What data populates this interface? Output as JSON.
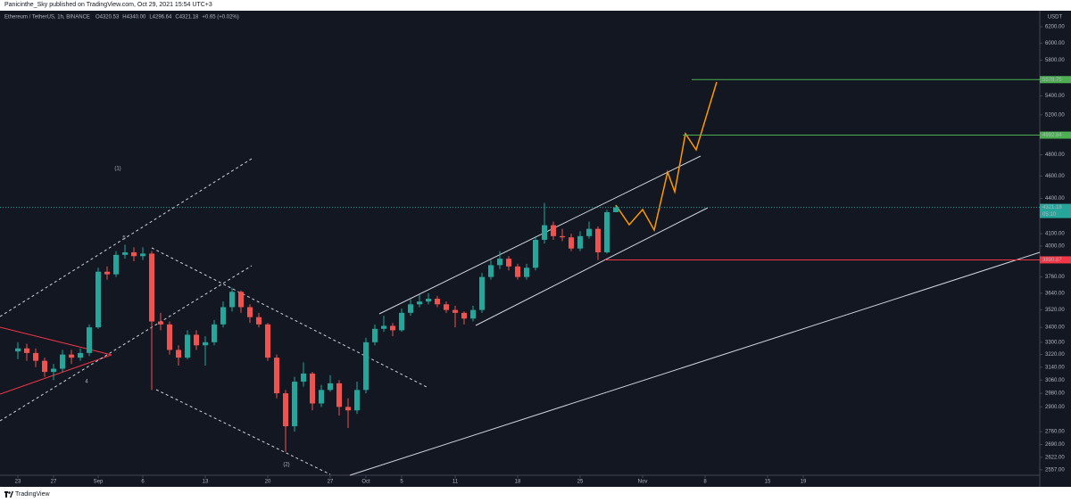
{
  "header": {
    "publisher": "Panicinthe_Sky published on TradingView.com, Oct 29, 2021 15:54 UTC+3",
    "footer": "TradingView"
  },
  "chart_data": {
    "type": "candlestick",
    "symbol": "Ethereum / TetherUS, 1h, BINANCE",
    "ohlc_legend": [
      "O4320.53",
      "H4340.00",
      "L4296.64",
      "C4321.18",
      "+0.65 (+0.02%)"
    ],
    "currency": "USDT",
    "log_scale": true,
    "up_color": "#26a69a",
    "down_color": "#ef5350",
    "open": [
      3240,
      3260,
      3230,
      3180,
      3110,
      3130,
      3220,
      3200,
      3230,
      3400,
      3800,
      3780,
      3930,
      3950,
      3920,
      3940,
      3440,
      3420,
      3250,
      3200,
      3350,
      3280,
      3300,
      3420,
      3540,
      3650,
      3540,
      3470,
      3420,
      3200,
      2980,
      2790,
      3050,
      3100,
      2920,
      3000,
      3040,
      2900,
      2880,
      3000,
      3300,
      3390,
      3410,
      3380,
      3500,
      3560,
      3580,
      3600,
      3560,
      3520,
      3500,
      3460,
      3520,
      3760,
      3850,
      3900,
      3840,
      3760,
      3830,
      4050,
      4170,
      4080,
      4070,
      3980,
      4080,
      4140,
      3950,
      4280
    ],
    "high": [
      3300,
      3290,
      3260,
      3200,
      3160,
      3250,
      3250,
      3260,
      3420,
      3830,
      3840,
      3960,
      4010,
      3990,
      3990,
      3960,
      3500,
      3440,
      3280,
      3380,
      3380,
      3340,
      3450,
      3580,
      3680,
      3660,
      3560,
      3500,
      3430,
      3220,
      3000,
      3080,
      3170,
      3110,
      3030,
      3090,
      3060,
      2950,
      3050,
      3330,
      3420,
      3480,
      3430,
      3530,
      3600,
      3630,
      3640,
      3620,
      3580,
      3550,
      3510,
      3550,
      3790,
      3890,
      3960,
      3920,
      3860,
      3860,
      4080,
      4360,
      4200,
      4140,
      4100,
      4120,
      4200,
      4160,
      4300,
      4340
    ],
    "low": [
      3190,
      3180,
      3140,
      3080,
      3060,
      3110,
      3160,
      3180,
      3210,
      3390,
      3740,
      3760,
      3900,
      3880,
      3890,
      3000,
      3380,
      3220,
      3150,
      3190,
      3250,
      3150,
      3280,
      3400,
      3510,
      3500,
      3430,
      3400,
      3180,
      2950,
      2650,
      2760,
      3020,
      2880,
      2900,
      2990,
      2850,
      2780,
      2860,
      2980,
      3280,
      3370,
      3340,
      3370,
      3480,
      3540,
      3560,
      3540,
      3500,
      3400,
      3420,
      3440,
      3500,
      3740,
      3820,
      3810,
      3740,
      3740,
      3810,
      4020,
      4050,
      4040,
      3960,
      3960,
      4060,
      3890,
      3940,
      4280
    ],
    "close": [
      3260,
      3230,
      3180,
      3110,
      3130,
      3220,
      3200,
      3230,
      3400,
      3800,
      3780,
      3930,
      3950,
      3920,
      3940,
      3440,
      3420,
      3250,
      3200,
      3350,
      3280,
      3300,
      3420,
      3540,
      3650,
      3540,
      3470,
      3420,
      3200,
      2980,
      2790,
      3050,
      3100,
      2920,
      3000,
      3040,
      2900,
      2880,
      3000,
      3300,
      3390,
      3410,
      3380,
      3500,
      3560,
      3580,
      3600,
      3560,
      3520,
      3500,
      3460,
      3520,
      3760,
      3850,
      3900,
      3840,
      3760,
      3830,
      4050,
      4170,
      4080,
      4070,
      3980,
      4080,
      4140,
      3950,
      4280,
      4321.18
    ],
    "xlim": [
      -2,
      114.5
    ],
    "xticks": [
      {
        "value": 0,
        "label": "23"
      },
      {
        "value": 4,
        "label": "27"
      },
      {
        "value": 9,
        "label": "Sep"
      },
      {
        "value": 14,
        "label": "6"
      },
      {
        "value": 21,
        "label": "13"
      },
      {
        "value": 28,
        "label": "20"
      },
      {
        "value": 35,
        "label": "27"
      },
      {
        "value": 39,
        "label": "Oct"
      },
      {
        "value": 43,
        "label": "5"
      },
      {
        "value": 49,
        "label": "11"
      },
      {
        "value": 56,
        "label": "18"
      },
      {
        "value": 63,
        "label": "25"
      },
      {
        "value": 70,
        "label": "Nov"
      },
      {
        "value": 77,
        "label": "8"
      },
      {
        "value": 84,
        "label": "15"
      },
      {
        "value": 88,
        "label": "19"
      }
    ],
    "ylim": [
      2485,
      6312
    ],
    "yticks": [
      {
        "value": 6200,
        "label": "6200.00"
      },
      {
        "value": 6000,
        "label": "6000.00"
      },
      {
        "value": 5800,
        "label": "5800.00"
      },
      {
        "value": 5400,
        "label": "5400.00"
      },
      {
        "value": 5200,
        "label": "5200.00"
      },
      {
        "value": 4800,
        "label": "4800.00"
      },
      {
        "value": 4600,
        "label": "4600.00"
      },
      {
        "value": 4400,
        "label": "4400.00"
      },
      {
        "value": 4100,
        "label": "4100.00"
      },
      {
        "value": 4000,
        "label": "4000.00"
      },
      {
        "value": 3760,
        "label": "3760.00"
      },
      {
        "value": 3640,
        "label": "3640.00"
      },
      {
        "value": 3520,
        "label": "3520.00"
      },
      {
        "value": 3400,
        "label": "3400.00"
      },
      {
        "value": 3300,
        "label": "3300.00"
      },
      {
        "value": 3220,
        "label": "3220.00"
      },
      {
        "value": 3140,
        "label": "3140.00"
      },
      {
        "value": 3060,
        "label": "3060.00"
      },
      {
        "value": 2980,
        "label": "2980.00"
      },
      {
        "value": 2900,
        "label": "2900.00"
      },
      {
        "value": 2760,
        "label": "2760.00"
      },
      {
        "value": 2690,
        "label": "2690.00"
      },
      {
        "value": 2622,
        "label": "2622.00"
      },
      {
        "value": 2557,
        "label": "2557.00"
      }
    ],
    "levels": [
      {
        "value": 5578.75,
        "color": "#4caf50"
      },
      {
        "value": 4992.84,
        "color": "#4caf50"
      },
      {
        "value": 3890.87,
        "color": "#f23645"
      }
    ],
    "last_price": {
      "value": 4321.18,
      "countdown": "05:10",
      "color": "#26a69a"
    },
    "annotations": [
      {
        "text": "(1)",
        "color": "#4caf50"
      },
      {
        "text": "5",
        "color": "#d1d4dc"
      },
      {
        "text": "4",
        "color": "#d1d4dc"
      },
      {
        "text": "(2)",
        "color": "#4caf50"
      }
    ]
  }
}
